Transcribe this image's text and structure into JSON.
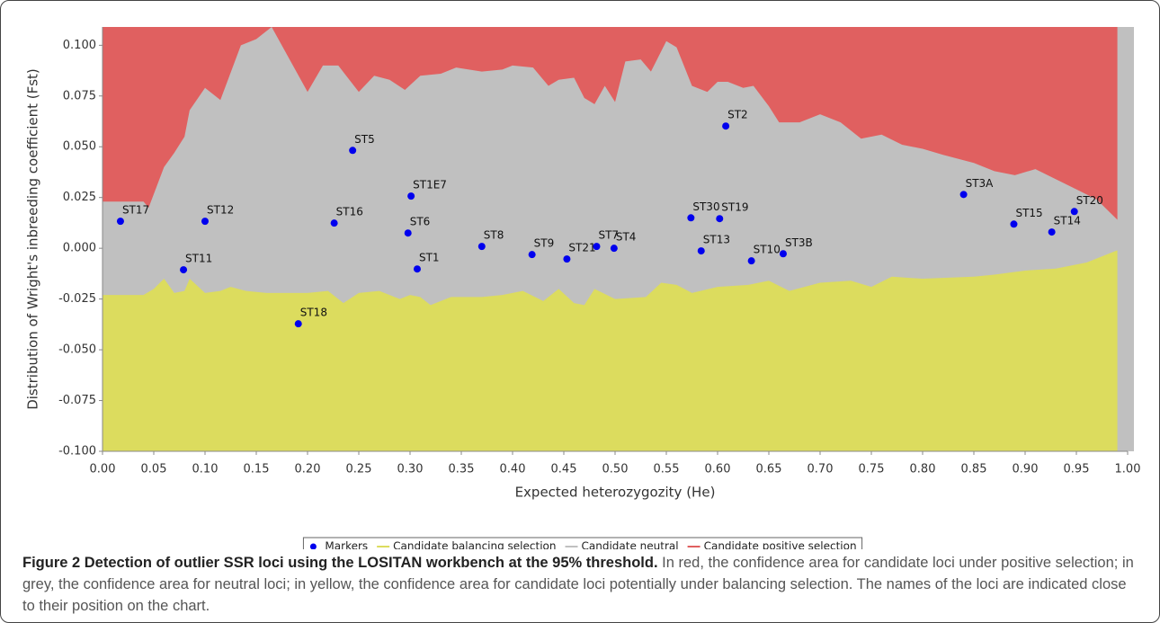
{
  "chart_data": {
    "type": "outlier-scatter",
    "xlabel": "Expected heterozygozity (He)",
    "ylabel": "Distribution of Wright's inbreeding coefficient (Fst)",
    "xlim": [
      0,
      1
    ],
    "ylim": [
      -0.1,
      0.109
    ],
    "xticks": [
      {
        "value": 0,
        "label": "0.00"
      },
      {
        "value": 0.05,
        "label": "0.05"
      },
      {
        "value": 0.1,
        "label": "0.10"
      },
      {
        "value": 0.15,
        "label": "0.15"
      },
      {
        "value": 0.2,
        "label": "0.20"
      },
      {
        "value": 0.25,
        "label": "0.25"
      },
      {
        "value": 0.3,
        "label": "0.30"
      },
      {
        "value": 0.35,
        "label": "0.35"
      },
      {
        "value": 0.4,
        "label": "0.40"
      },
      {
        "value": 0.45,
        "label": "0.45"
      },
      {
        "value": 0.5,
        "label": "0.50"
      },
      {
        "value": 0.55,
        "label": "0.55"
      },
      {
        "value": 0.6,
        "label": "0.60"
      },
      {
        "value": 0.65,
        "label": "0.65"
      },
      {
        "value": 0.7,
        "label": "0.70"
      },
      {
        "value": 0.75,
        "label": "0.75"
      },
      {
        "value": 0.8,
        "label": "0.80"
      },
      {
        "value": 0.85,
        "label": "0.85"
      },
      {
        "value": 0.9,
        "label": "0.90"
      },
      {
        "value": 0.95,
        "label": "0.95"
      },
      {
        "value": 1,
        "label": "1.00"
      }
    ],
    "yticks": [
      {
        "value": 0.1,
        "label": "0.100"
      },
      {
        "value": 0.075,
        "label": "0.075"
      },
      {
        "value": 0.05,
        "label": "0.050"
      },
      {
        "value": 0.025,
        "label": "0.025"
      },
      {
        "value": 0,
        "label": "0.000"
      },
      {
        "value": -0.025,
        "label": "-0.025"
      },
      {
        "value": -0.05,
        "label": "-0.050"
      },
      {
        "value": -0.075,
        "label": "-0.075"
      },
      {
        "value": -0.1,
        "label": "-0.100"
      }
    ],
    "series": [
      {
        "name": "Markers",
        "kind": "scatter",
        "color": "#0000ee",
        "labels": [
          "ST17",
          "ST11",
          "ST12",
          "ST18",
          "ST16",
          "ST5",
          "ST1E7",
          "ST6",
          "ST1",
          "ST8",
          "ST9",
          "ST21",
          "ST7",
          "ST4",
          "ST2",
          "ST30",
          "ST19",
          "ST13",
          "ST10",
          "ST3B",
          "ST3A",
          "ST15",
          "ST14",
          "ST20"
        ],
        "x": [
          0.0175,
          0.079,
          0.1,
          0.191,
          0.226,
          0.244,
          0.301,
          0.298,
          0.307,
          0.37,
          0.419,
          0.453,
          0.482,
          0.499,
          0.608,
          0.574,
          0.602,
          0.584,
          0.633,
          0.664,
          0.84,
          0.889,
          0.926,
          0.948
        ],
        "values": [
          0.0133,
          -0.0106,
          0.0133,
          -0.0372,
          0.0124,
          0.0482,
          0.0257,
          0.0075,
          -0.0102,
          0.0009,
          -0.0031,
          -0.0053,
          0.0009,
          0.0,
          0.0602,
          0.015,
          0.0146,
          -0.0013,
          -0.0062,
          -0.0027,
          0.0265,
          0.0119,
          0.008,
          0.0181
        ]
      },
      {
        "name": "Candidate balancing selection",
        "kind": "lower-area",
        "color": "#dcdc5e",
        "x": [
          0,
          0.04,
          0.05,
          0.06,
          0.07,
          0.08,
          0.085,
          0.1,
          0.115,
          0.125,
          0.14,
          0.16,
          0.2,
          0.22,
          0.235,
          0.25,
          0.27,
          0.29,
          0.3,
          0.31,
          0.32,
          0.34,
          0.37,
          0.39,
          0.41,
          0.43,
          0.445,
          0.46,
          0.47,
          0.48,
          0.5,
          0.53,
          0.545,
          0.56,
          0.575,
          0.6,
          0.63,
          0.65,
          0.67,
          0.7,
          0.73,
          0.75,
          0.77,
          0.8,
          0.85,
          0.87,
          0.9,
          0.93,
          0.96,
          0.99
        ],
        "values": [
          -0.023,
          -0.023,
          -0.02,
          -0.015,
          -0.022,
          -0.021,
          -0.015,
          -0.022,
          -0.021,
          -0.019,
          -0.021,
          -0.022,
          -0.022,
          -0.021,
          -0.027,
          -0.022,
          -0.021,
          -0.025,
          -0.023,
          -0.024,
          -0.028,
          -0.024,
          -0.024,
          -0.023,
          -0.021,
          -0.026,
          -0.02,
          -0.027,
          -0.028,
          -0.02,
          -0.025,
          -0.024,
          -0.017,
          -0.018,
          -0.022,
          -0.019,
          -0.018,
          -0.016,
          -0.021,
          -0.017,
          -0.016,
          -0.019,
          -0.014,
          -0.015,
          -0.014,
          -0.013,
          -0.011,
          -0.01,
          -0.007,
          -0.001
        ]
      },
      {
        "name": "Candidate neutral",
        "kind": "background",
        "color": "#c0c0c0"
      },
      {
        "name": "Candidate positive selection",
        "kind": "upper-area",
        "color": "#e06060",
        "x": [
          0,
          0.04,
          0.045,
          0.06,
          0.07,
          0.08,
          0.085,
          0.1,
          0.115,
          0.135,
          0.15,
          0.165,
          0.2,
          0.215,
          0.23,
          0.25,
          0.265,
          0.28,
          0.295,
          0.31,
          0.33,
          0.345,
          0.37,
          0.39,
          0.4,
          0.42,
          0.435,
          0.445,
          0.46,
          0.47,
          0.48,
          0.49,
          0.5,
          0.51,
          0.525,
          0.535,
          0.55,
          0.56,
          0.575,
          0.59,
          0.6,
          0.61,
          0.625,
          0.635,
          0.65,
          0.66,
          0.68,
          0.7,
          0.72,
          0.74,
          0.76,
          0.78,
          0.8,
          0.82,
          0.85,
          0.87,
          0.89,
          0.91,
          0.93,
          0.95,
          0.97,
          0.99
        ],
        "values": [
          0.023,
          0.023,
          0.02,
          0.04,
          0.047,
          0.055,
          0.068,
          0.079,
          0.073,
          0.1,
          0.103,
          0.109,
          0.077,
          0.09,
          0.09,
          0.077,
          0.085,
          0.083,
          0.078,
          0.085,
          0.086,
          0.089,
          0.087,
          0.088,
          0.09,
          0.089,
          0.08,
          0.083,
          0.084,
          0.074,
          0.071,
          0.08,
          0.072,
          0.092,
          0.093,
          0.087,
          0.102,
          0.099,
          0.08,
          0.077,
          0.082,
          0.082,
          0.079,
          0.08,
          0.07,
          0.062,
          0.062,
          0.066,
          0.062,
          0.054,
          0.056,
          0.051,
          0.049,
          0.046,
          0.042,
          0.038,
          0.036,
          0.039,
          0.034,
          0.029,
          0.024,
          0.014
        ]
      }
    ]
  },
  "caption": {
    "title": "Figure 2 Detection of outlier SSR loci using the LOSITAN workbench at the 95% threshold.",
    "text": "In red, the confidence area for candidate loci under positive selection; in grey, the confidence area for neutral loci; in yellow, the confidence area for candidate loci potentially under balancing selection. The names of the loci are indicated close to their position on the chart."
  }
}
